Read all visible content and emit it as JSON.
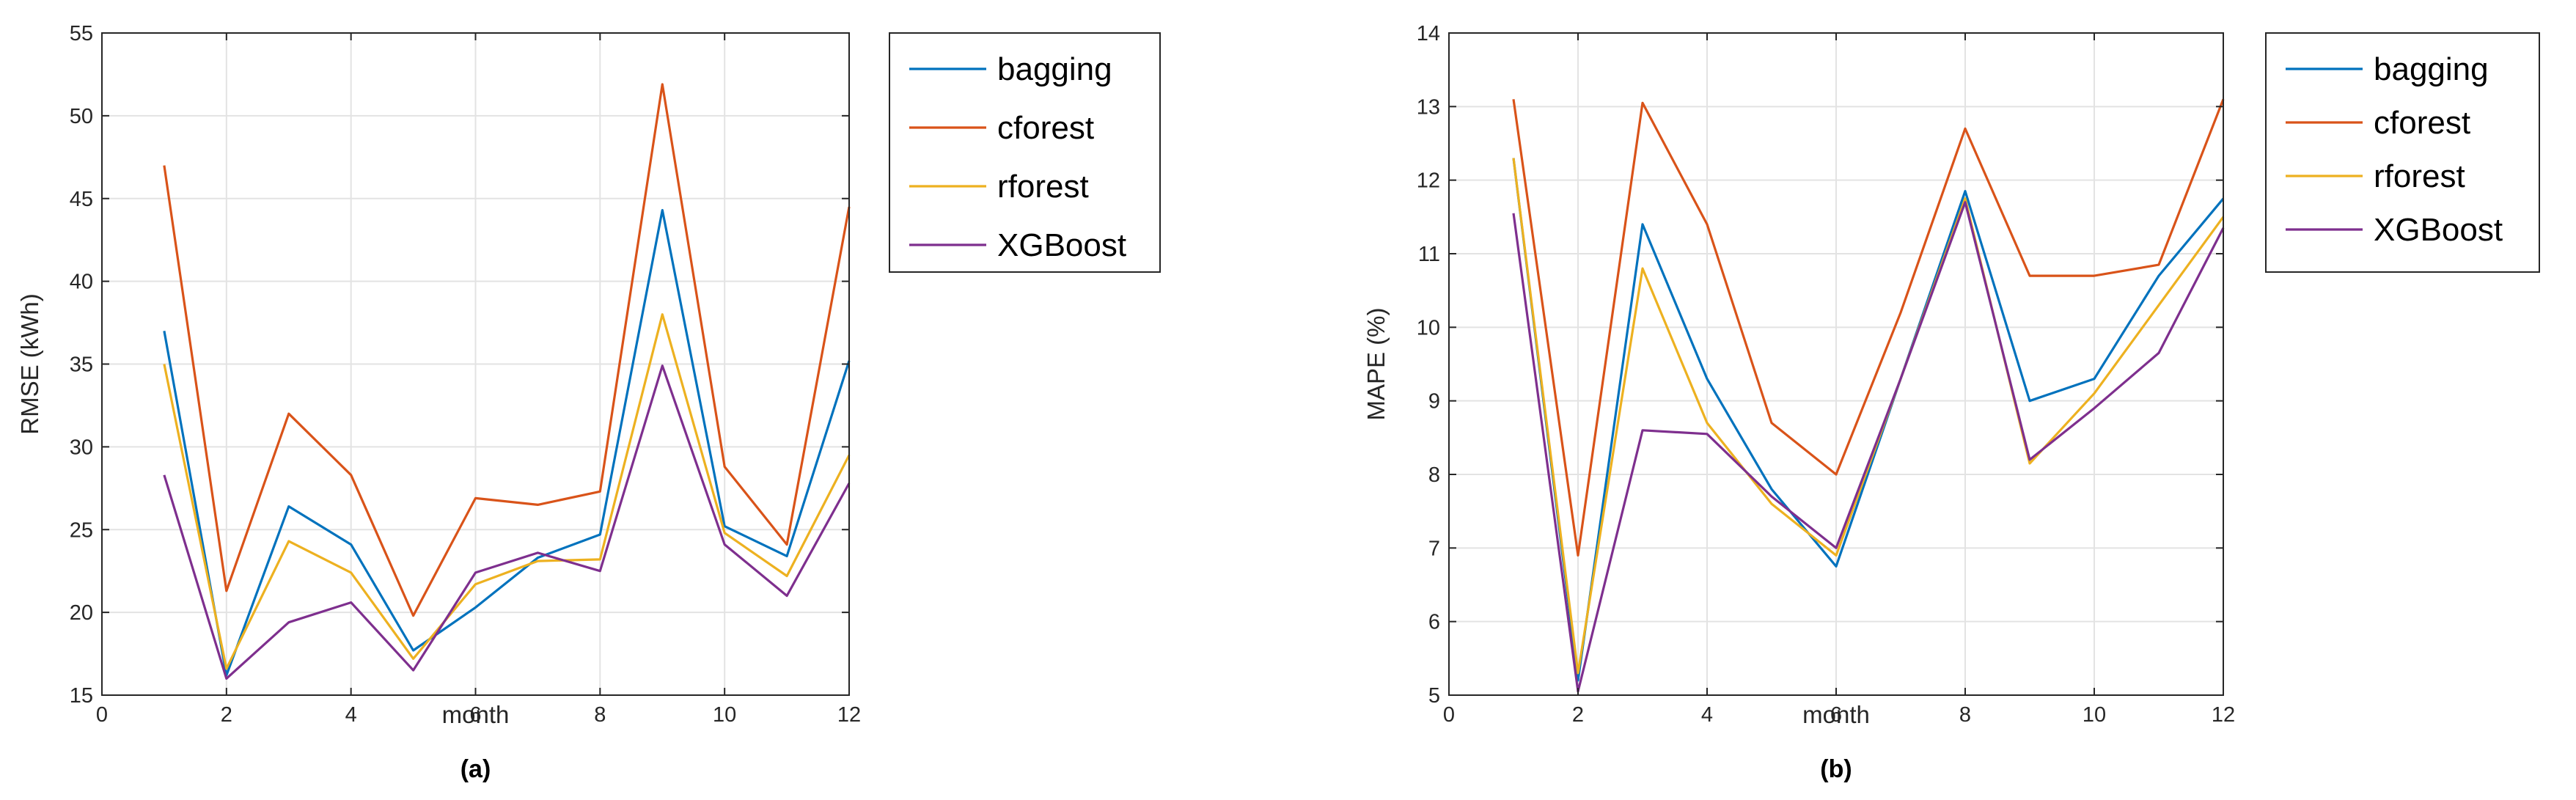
{
  "chart_data": [
    {
      "type": "line",
      "caption": "(a)",
      "xlabel": "month",
      "ylabel": "RMSE (kWh)",
      "xlim": [
        0,
        12
      ],
      "ylim": [
        15,
        55
      ],
      "xticks": [
        0,
        2,
        4,
        6,
        8,
        10,
        12
      ],
      "yticks": [
        15,
        20,
        25,
        30,
        35,
        40,
        45,
        50,
        55
      ],
      "grid": true,
      "legend": "outside-right",
      "x": [
        1,
        2,
        3,
        4,
        5,
        6,
        7,
        8,
        9,
        10,
        11,
        12
      ],
      "series": [
        {
          "name": "bagging",
          "color": "#0072BD",
          "values": [
            37,
            16.2,
            26.4,
            24.1,
            17.7,
            20.3,
            23.3,
            24.7,
            44.3,
            25.2,
            23.4,
            35.2
          ]
        },
        {
          "name": "cforest",
          "color": "#D95319",
          "values": [
            47,
            21.3,
            32,
            28.3,
            19.8,
            26.9,
            26.5,
            27.3,
            51.9,
            28.8,
            24.1,
            44.5
          ]
        },
        {
          "name": "rforest",
          "color": "#EDB120",
          "values": [
            35,
            16.6,
            24.3,
            22.4,
            17.2,
            21.7,
            23.1,
            23.2,
            38,
            24.8,
            22.2,
            29.5
          ]
        },
        {
          "name": "XGBoost",
          "color": "#7E2F8E",
          "values": [
            28.3,
            16,
            19.4,
            20.6,
            16.5,
            22.4,
            23.6,
            22.5,
            34.9,
            24.1,
            21,
            27.8
          ]
        }
      ]
    },
    {
      "type": "line",
      "caption": "(b)",
      "xlabel": "month",
      "ylabel": "MAPE (%)",
      "xlim": [
        0,
        12
      ],
      "ylim": [
        5,
        14
      ],
      "xticks": [
        0,
        2,
        4,
        6,
        8,
        10,
        12
      ],
      "yticks": [
        5,
        6,
        7,
        8,
        9,
        10,
        11,
        12,
        13,
        14
      ],
      "grid": true,
      "legend": "outside-right",
      "x": [
        1,
        2,
        3,
        4,
        5,
        6,
        7,
        8,
        9,
        10,
        11,
        12
      ],
      "series": [
        {
          "name": "bagging",
          "color": "#0072BD",
          "values": [
            12.3,
            5.2,
            11.4,
            9.3,
            7.8,
            6.75,
            9.3,
            11.85,
            9,
            9.3,
            10.7,
            11.75
          ]
        },
        {
          "name": "cforest",
          "color": "#D95319",
          "values": [
            13.1,
            6.9,
            13.05,
            11.4,
            8.7,
            8,
            10.2,
            12.7,
            10.7,
            10.7,
            10.85,
            13.1
          ]
        },
        {
          "name": "rforest",
          "color": "#EDB120",
          "values": [
            12.3,
            5.3,
            10.8,
            8.7,
            7.6,
            6.9,
            9.3,
            11.75,
            8.15,
            9.1,
            10.3,
            11.5
          ]
        },
        {
          "name": "XGBoost",
          "color": "#7E2F8E",
          "values": [
            11.55,
            5.05,
            8.6,
            8.55,
            7.7,
            7,
            9.3,
            11.7,
            8.2,
            8.9,
            9.65,
            11.35
          ]
        }
      ]
    }
  ]
}
